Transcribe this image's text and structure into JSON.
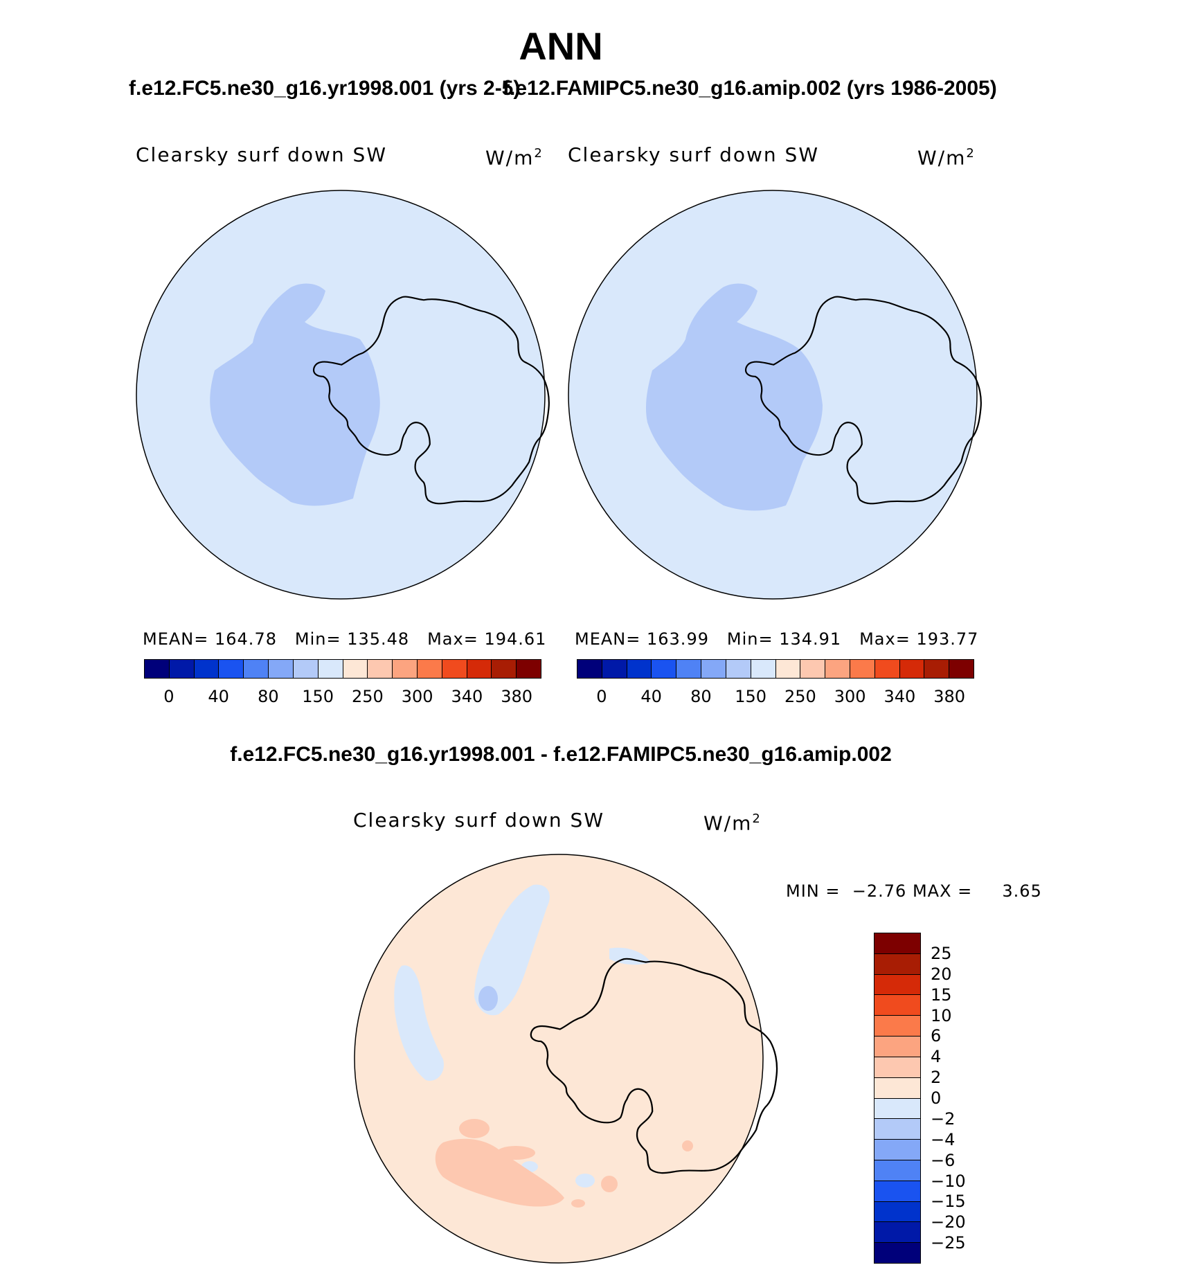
{
  "figure": {
    "title": "ANN",
    "case1_title": "f.e12.FC5.ne30_g16.yr1998.001 (yrs 2-5)",
    "case2_title": "f.e12.FAMIPC5.ne30_g16.amip.002 (yrs 1986-2005)",
    "diff_title": "f.e12.FC5.ne30_g16.yr1998.001 - f.e12.FAMIPC5.ne30_g16.amip.002"
  },
  "panels": [
    {
      "variable": "Clearsky surf down SW",
      "units_base": "W/m",
      "units_exp": "2",
      "mean_label": "MEAN=",
      "mean": "164.78",
      "min_label": "Min=",
      "min": "135.48",
      "max_label": "Max=",
      "max": "194.61"
    },
    {
      "variable": "Clearsky surf down SW",
      "units_base": "W/m",
      "units_exp": "2",
      "mean_label": "MEAN=",
      "mean": "163.99",
      "min_label": "Min=",
      "min": "134.91",
      "max_label": "Max=",
      "max": "193.77"
    },
    {
      "variable": "Clearsky surf down SW",
      "units_base": "W/m",
      "units_exp": "2",
      "min_label": "MIN =",
      "min": "−2.76",
      "max_label": "MAX =",
      "max": "3.65"
    }
  ],
  "colorbar_abs": {
    "colors": [
      "#00007a",
      "#0019a8",
      "#0033cc",
      "#1a53f0",
      "#4f82f5",
      "#84a8f7",
      "#b3caf8",
      "#d9e8fb",
      "#fde7d6",
      "#fdc8b0",
      "#fca480",
      "#fb7a4a",
      "#f04b1e",
      "#d52a08",
      "#a81d04",
      "#7d0000"
    ],
    "labels": [
      "0",
      "40",
      "80",
      "150",
      "250",
      "300",
      "340",
      "380"
    ]
  },
  "colorbar_diff": {
    "colors_top_to_bottom": [
      "#7d0000",
      "#a81d04",
      "#d52a08",
      "#f04b1e",
      "#fb7a4a",
      "#fca480",
      "#fdc8b0",
      "#fde7d6",
      "#d9e8fb",
      "#b3caf8",
      "#84a8f7",
      "#4f82f5",
      "#1a53f0",
      "#0033cc",
      "#0019a8",
      "#00007a"
    ],
    "labels_top_to_bottom": [
      "25",
      "20",
      "15",
      "10",
      "6",
      "4",
      "2",
      "0",
      "−2",
      "−4",
      "−6",
      "−10",
      "−15",
      "−20",
      "−25"
    ]
  },
  "colors": {
    "map_background_abs": "#d9e8fb",
    "map_region_abs": "#b3caf8",
    "map_background_diff": "#fde7d6",
    "map_neg_diff": "#d9e8fb",
    "map_neg2_diff": "#b3caf8",
    "map_pos_diff": "#fdc8b0"
  },
  "chart_data": [
    {
      "type": "heatmap",
      "projection": "south polar stereographic",
      "title": "f.e12.FC5.ne30_g16.yr1998.001 (yrs 2-5)",
      "variable": "Clearsky surf down SW",
      "units": "W/m2",
      "mean": 164.78,
      "min": 135.48,
      "max": 194.61,
      "contour_levels": [
        0,
        40,
        80,
        150,
        250,
        300,
        340,
        380
      ]
    },
    {
      "type": "heatmap",
      "projection": "south polar stereographic",
      "title": "f.e12.FAMIPC5.ne30_g16.amip.002 (yrs 1986-2005)",
      "variable": "Clearsky surf down SW",
      "units": "W/m2",
      "mean": 163.99,
      "min": 134.91,
      "max": 193.77,
      "contour_levels": [
        0,
        40,
        80,
        150,
        250,
        300,
        340,
        380
      ]
    },
    {
      "type": "heatmap",
      "projection": "south polar stereographic",
      "title": "f.e12.FC5.ne30_g16.yr1998.001 - f.e12.FAMIPC5.ne30_g16.amip.002",
      "variable": "Clearsky surf down SW",
      "units": "W/m2",
      "min": -2.76,
      "max": 3.65,
      "contour_levels": [
        -25,
        -20,
        -15,
        -10,
        -6,
        -4,
        -2,
        0,
        2,
        4,
        6,
        10,
        15,
        20,
        25
      ]
    }
  ]
}
